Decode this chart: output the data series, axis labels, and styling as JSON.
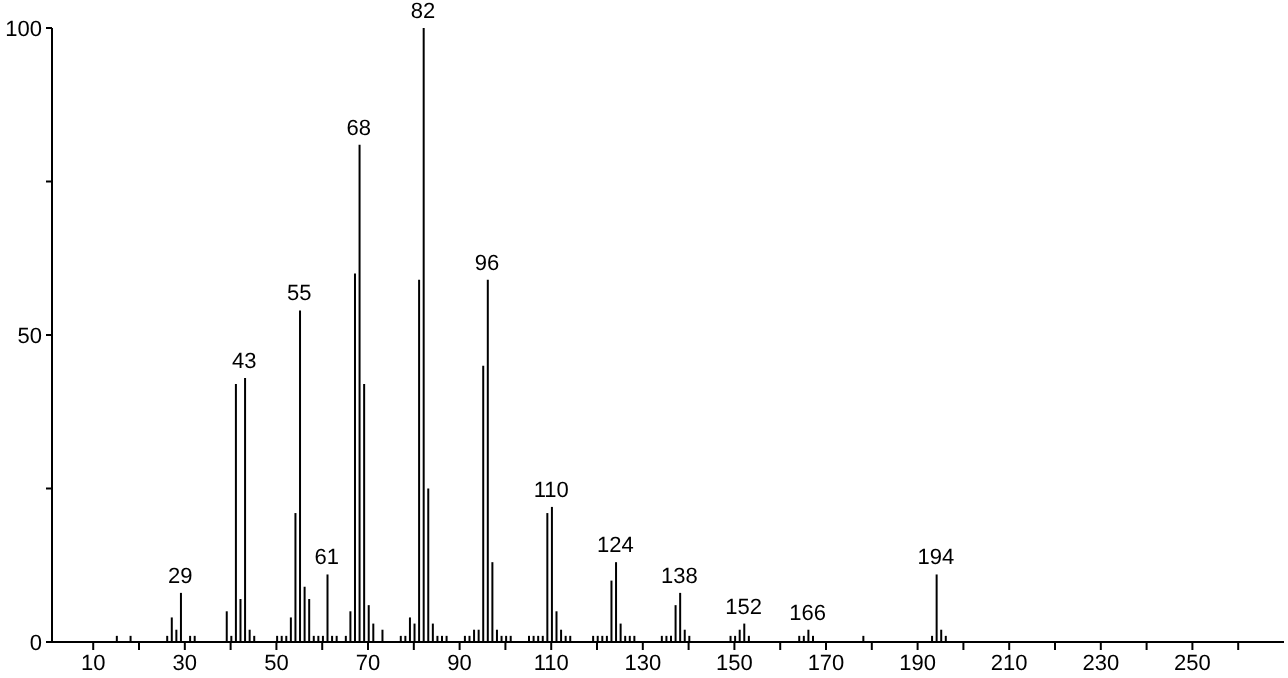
{
  "chart_data": {
    "type": "bar",
    "color": "#000000",
    "x": [
      15,
      18,
      26,
      27,
      28,
      29,
      31,
      32,
      39,
      40,
      41,
      42,
      43,
      44,
      45,
      50,
      51,
      52,
      53,
      54,
      55,
      56,
      57,
      58,
      59,
      60,
      61,
      62,
      63,
      65,
      66,
      67,
      68,
      69,
      70,
      71,
      73,
      77,
      78,
      79,
      80,
      81,
      82,
      83,
      84,
      85,
      86,
      87,
      91,
      92,
      93,
      94,
      95,
      96,
      97,
      98,
      99,
      100,
      101,
      105,
      106,
      107,
      108,
      109,
      110,
      111,
      112,
      113,
      114,
      119,
      120,
      121,
      122,
      123,
      124,
      125,
      126,
      127,
      128,
      134,
      135,
      136,
      137,
      138,
      139,
      140,
      149,
      150,
      151,
      152,
      153,
      164,
      165,
      166,
      167,
      178,
      193,
      194,
      195,
      196
    ],
    "values": [
      1,
      1,
      1,
      4,
      2,
      8,
      1,
      1,
      5,
      1,
      42,
      7,
      43,
      2,
      1,
      1,
      1,
      1,
      4,
      21,
      54,
      9,
      7,
      1,
      1,
      1,
      11,
      1,
      1,
      1,
      5,
      60,
      81,
      42,
      6,
      3,
      2,
      1,
      1,
      4,
      3,
      59,
      100,
      25,
      3,
      1,
      1,
      1,
      1,
      1,
      2,
      2,
      45,
      59,
      13,
      2,
      1,
      1,
      1,
      1,
      1,
      1,
      1,
      21,
      22,
      5,
      2,
      1,
      1,
      1,
      1,
      1,
      1,
      10,
      13,
      3,
      1,
      1,
      1,
      1,
      1,
      1,
      6,
      8,
      2,
      1,
      1,
      1,
      2,
      3,
      1,
      1,
      1,
      2,
      1,
      1,
      1,
      11,
      2,
      1
    ],
    "xlim": [
      1,
      270
    ],
    "xticks": [
      {
        "value": 10,
        "label": "10"
      },
      {
        "value": 20,
        "label": null
      },
      {
        "value": 30,
        "label": "30"
      },
      {
        "value": 40,
        "label": null
      },
      {
        "value": 50,
        "label": "50"
      },
      {
        "value": 60,
        "label": null
      },
      {
        "value": 70,
        "label": "70"
      },
      {
        "value": 80,
        "label": null
      },
      {
        "value": 90,
        "label": "90"
      },
      {
        "value": 100,
        "label": null
      },
      {
        "value": 110,
        "label": "110"
      },
      {
        "value": 120,
        "label": null
      },
      {
        "value": 130,
        "label": "130"
      },
      {
        "value": 140,
        "label": null
      },
      {
        "value": 150,
        "label": "150"
      },
      {
        "value": 160,
        "label": null
      },
      {
        "value": 170,
        "label": "170"
      },
      {
        "value": 180,
        "label": null
      },
      {
        "value": 190,
        "label": "190"
      },
      {
        "value": 200,
        "label": null
      },
      {
        "value": 210,
        "label": "210"
      },
      {
        "value": 220,
        "label": null
      },
      {
        "value": 230,
        "label": "230"
      },
      {
        "value": 240,
        "label": null
      },
      {
        "value": 250,
        "label": "250"
      },
      {
        "value": 260,
        "label": null
      }
    ],
    "ylim": [
      0,
      100
    ],
    "yticks": [
      0,
      {
        "value": 25,
        "label": null
      },
      50,
      {
        "value": 75,
        "label": null
      },
      100
    ],
    "annotations": [
      {
        "text": "29",
        "x": 29,
        "y": 8
      },
      {
        "text": "43",
        "x": 43,
        "y": 43
      },
      {
        "text": "55",
        "x": 55,
        "y": 54
      },
      {
        "text": "61",
        "x": 61,
        "y": 11
      },
      {
        "text": "68",
        "x": 68,
        "y": 81
      },
      {
        "text": "82",
        "x": 82,
        "y": 100
      },
      {
        "text": "96",
        "x": 96,
        "y": 59
      },
      {
        "text": "110",
        "x": 110,
        "y": 22
      },
      {
        "text": "124",
        "x": 124,
        "y": 13
      },
      {
        "text": "138",
        "x": 138,
        "y": 8
      },
      {
        "text": "152",
        "x": 152,
        "y": 3
      },
      {
        "text": "166",
        "x": 166,
        "y": 2
      },
      {
        "text": "194",
        "x": 194,
        "y": 11
      }
    ]
  }
}
